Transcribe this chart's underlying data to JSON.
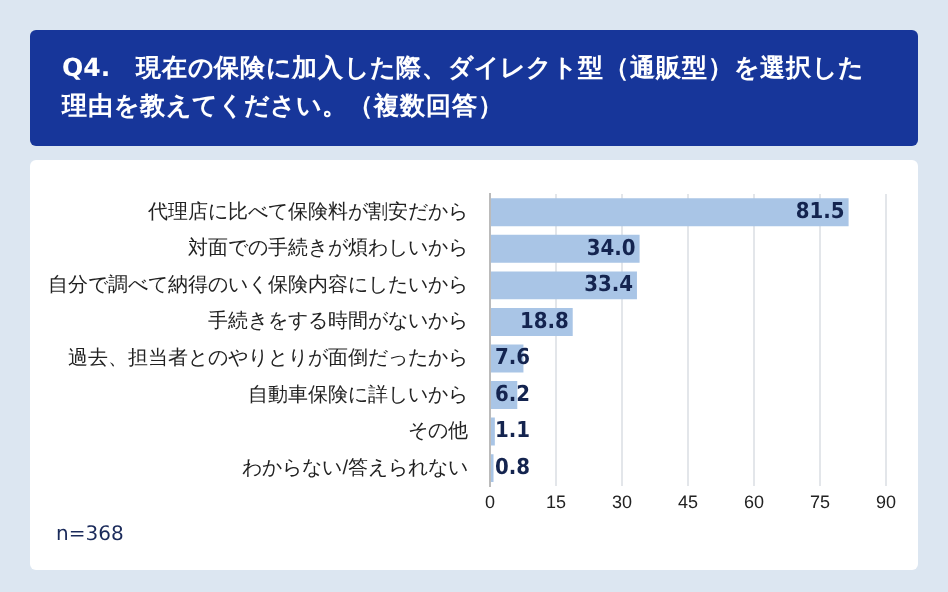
{
  "chart_data": {
    "type": "bar",
    "orientation": "horizontal",
    "title": "Q4.　現在の保険に加入した際、ダイレクト型（通販型）を選択した理由を教えてください。（複数回答）",
    "categories": [
      "代理店に比べて保険料が割安だから",
      "対面での手続きが煩わしいから",
      "自分で調べて納得のいく保険内容にしたいから",
      "手続きをする時間がないから",
      "過去、担当者とのやりとりが面倒だったから",
      "自動車保険に詳しいから",
      "その他",
      "わからない/答えられない"
    ],
    "values": [
      81.5,
      34.0,
      33.4,
      18.8,
      7.6,
      6.2,
      1.1,
      0.8
    ],
    "value_labels": [
      "81.5",
      "34.0",
      "33.4",
      "18.8",
      "7.6",
      "6.2",
      "1.1",
      "0.8"
    ],
    "color": "#a9c5e6",
    "xlim": [
      0,
      90
    ],
    "xticks": [
      0,
      15,
      30,
      45,
      60,
      75,
      90
    ],
    "grid": "x",
    "annotations": [
      "n=368"
    ]
  }
}
